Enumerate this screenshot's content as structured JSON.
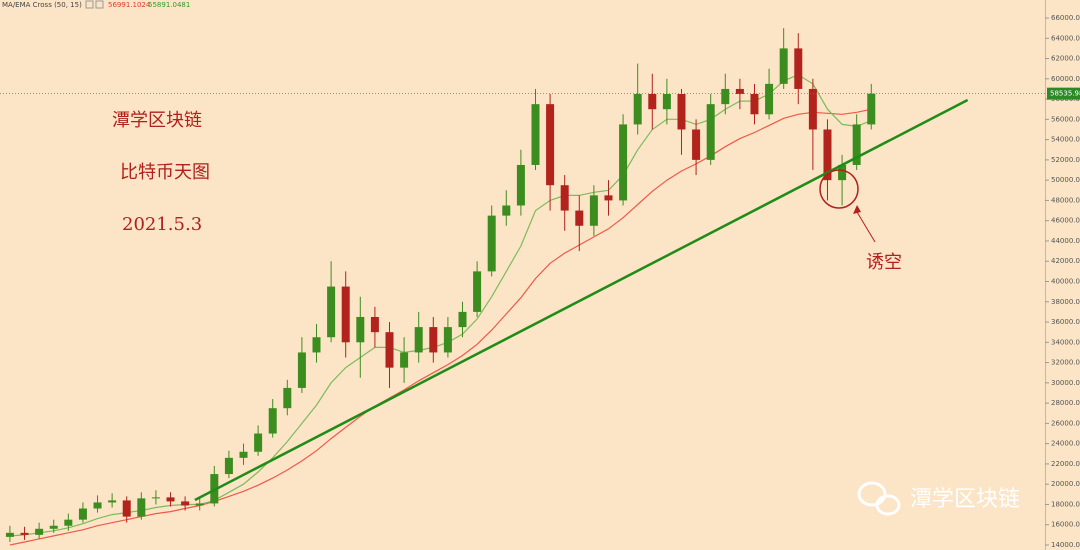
{
  "chart_data": {
    "type": "candlestick",
    "indicator": {
      "label": "MA/EMA Cross (50, 15)",
      "values": [
        56991.1024,
        55891.0481
      ],
      "colors": [
        "#e03a2f",
        "#2f9a2a"
      ]
    },
    "up_color": "#3c8d1f",
    "down_color": "#b3231d",
    "open": [
      14800,
      15200,
      15000,
      15600,
      15900,
      16500,
      17600,
      18200,
      18400,
      16800,
      18600,
      18700,
      18300,
      17900,
      18100,
      21000,
      22600,
      23200,
      25000,
      27500,
      29500,
      33000,
      34500,
      39500,
      34000,
      36500,
      35000,
      31500,
      33000,
      35500,
      33000,
      35500,
      37000,
      41000,
      46500,
      47500,
      51500,
      57500,
      49500,
      47000,
      45500,
      48500,
      48000,
      55500,
      58500,
      57000,
      58500,
      55000,
      52000,
      57500,
      59000,
      58500,
      56500,
      59500,
      63000,
      59000,
      55000,
      50000,
      51500,
      55500
    ],
    "high": [
      15900,
      15800,
      16200,
      16500,
      17100,
      18200,
      18900,
      19100,
      18800,
      19200,
      19400,
      19200,
      18800,
      18600,
      21800,
      23300,
      24000,
      25800,
      28400,
      30300,
      34500,
      35800,
      42000,
      41000,
      38500,
      37500,
      36000,
      34500,
      37000,
      36500,
      36500,
      38000,
      42000,
      47500,
      49000,
      53000,
      59000,
      58500,
      50500,
      48500,
      49500,
      50000,
      56500,
      61500,
      60500,
      60000,
      59000,
      56000,
      58500,
      60500,
      60000,
      59500,
      61000,
      65000,
      64500,
      60000,
      56000,
      52500,
      56500,
      59500
    ],
    "low": [
      14300,
      14500,
      14600,
      15200,
      15400,
      16200,
      17200,
      17700,
      16200,
      16500,
      18000,
      17800,
      17400,
      17400,
      17800,
      20600,
      21900,
      22800,
      24600,
      26800,
      29000,
      32000,
      34000,
      32500,
      30500,
      33500,
      29500,
      30000,
      32000,
      32000,
      32500,
      34500,
      36500,
      40500,
      45500,
      46500,
      51000,
      47000,
      45000,
      43000,
      44500,
      46500,
      47500,
      54500,
      55000,
      55500,
      52500,
      50500,
      51500,
      56500,
      57000,
      55500,
      56000,
      59000,
      57500,
      51000,
      48000,
      47500,
      51000,
      55000
    ],
    "close": [
      15200,
      15000,
      15600,
      15900,
      16500,
      17600,
      18200,
      18400,
      16800,
      18600,
      18700,
      18300,
      17900,
      18100,
      21000,
      22600,
      23200,
      25000,
      27500,
      29500,
      33000,
      34500,
      39500,
      34000,
      36500,
      35000,
      31500,
      33000,
      35500,
      33000,
      35500,
      37000,
      41000,
      46500,
      47500,
      51500,
      57500,
      49500,
      47000,
      45500,
      48500,
      48000,
      55500,
      58500,
      57000,
      58500,
      55000,
      52000,
      57500,
      59000,
      58500,
      56500,
      59500,
      63000,
      59000,
      55000,
      50000,
      51500,
      55500,
      58535.98
    ],
    "ma_lines": [
      {
        "color": "#f0584a",
        "values": [
          14000,
          14300,
          14600,
          14900,
          15200,
          15500,
          15900,
          16200,
          16500,
          16800,
          17100,
          17300,
          17600,
          17900,
          18300,
          18800,
          19300,
          19900,
          20600,
          21400,
          22300,
          23300,
          24500,
          25600,
          26700,
          27700,
          28500,
          29300,
          30200,
          31000,
          31800,
          32700,
          33800,
          35200,
          36800,
          38400,
          40300,
          41800,
          42800,
          43600,
          44400,
          45200,
          46300,
          47600,
          48900,
          50000,
          50900,
          51600,
          52400,
          53300,
          54100,
          54700,
          55400,
          56100,
          56500,
          56700,
          56600,
          56500,
          56700,
          56991
        ]
      },
      {
        "color": "#7dbb5a",
        "values": [
          14900,
          15000,
          15200,
          15400,
          15700,
          16100,
          16600,
          17000,
          17200,
          17400,
          17700,
          17900,
          18000,
          18000,
          18400,
          19200,
          20000,
          21200,
          22600,
          24200,
          26000,
          27800,
          30000,
          31500,
          32500,
          33500,
          33500,
          33000,
          33200,
          33500,
          34000,
          34800,
          36300,
          38500,
          41000,
          43500,
          47000,
          48000,
          48500,
          48500,
          48800,
          49000,
          50500,
          53000,
          55000,
          56000,
          56000,
          55500,
          56000,
          57000,
          57800,
          57800,
          58500,
          59800,
          60400,
          59500,
          57000,
          55500,
          55300,
          55891
        ]
      }
    ],
    "trendline": {
      "color": "#1f8c17",
      "x": [
        12.67,
        65.6
      ],
      "values": [
        18440,
        57906
      ]
    },
    "last_price": 58535.98,
    "last_price_color": "#2b8a26",
    "xlim": [
      -0.68,
      70.9
    ],
    "ylim": [
      14000,
      66000
    ],
    "yticks": [
      {
        "value": 14000,
        "label": "14000.00"
      },
      {
        "value": 16000,
        "label": "16000.00"
      },
      {
        "value": 18000,
        "label": "18000.00"
      },
      {
        "value": 20000,
        "label": "20000.00"
      },
      {
        "value": 22000,
        "label": "22000.00"
      },
      {
        "value": 24000,
        "label": "24000.00"
      },
      {
        "value": 26000,
        "label": "26000.00"
      },
      {
        "value": 28000,
        "label": "28000.00"
      },
      {
        "value": 30000,
        "label": "30000.00"
      },
      {
        "value": 32000,
        "label": "32000.00"
      },
      {
        "value": 34000,
        "label": "34000.00"
      },
      {
        "value": 36000,
        "label": "36000.00"
      },
      {
        "value": 38000,
        "label": "38000.00"
      },
      {
        "value": 40000,
        "label": "40000.00"
      },
      {
        "value": 42000,
        "label": "42000.00"
      },
      {
        "value": 44000,
        "label": "44000.00"
      },
      {
        "value": 46000,
        "label": "46000.00"
      },
      {
        "value": 48000,
        "label": "48000.00"
      },
      {
        "value": 50000,
        "label": "50000.00"
      },
      {
        "value": 52000,
        "label": "52000.00"
      },
      {
        "value": 54000,
        "label": "54000.00"
      },
      {
        "value": 56000,
        "label": "56000.00"
      },
      {
        "value": 58000,
        "label": "58000.00"
      },
      {
        "value": 60000,
        "label": "60000.00"
      },
      {
        "value": 62000,
        "label": "62000.00"
      },
      {
        "value": 64000,
        "label": "64000.00"
      },
      {
        "value": 66000,
        "label": "66000.00"
      }
    ],
    "annotations": [
      "潭学区块链",
      "比特币天图",
      "2021.5.3",
      "诱空"
    ],
    "watermark": "潭学区块链"
  }
}
